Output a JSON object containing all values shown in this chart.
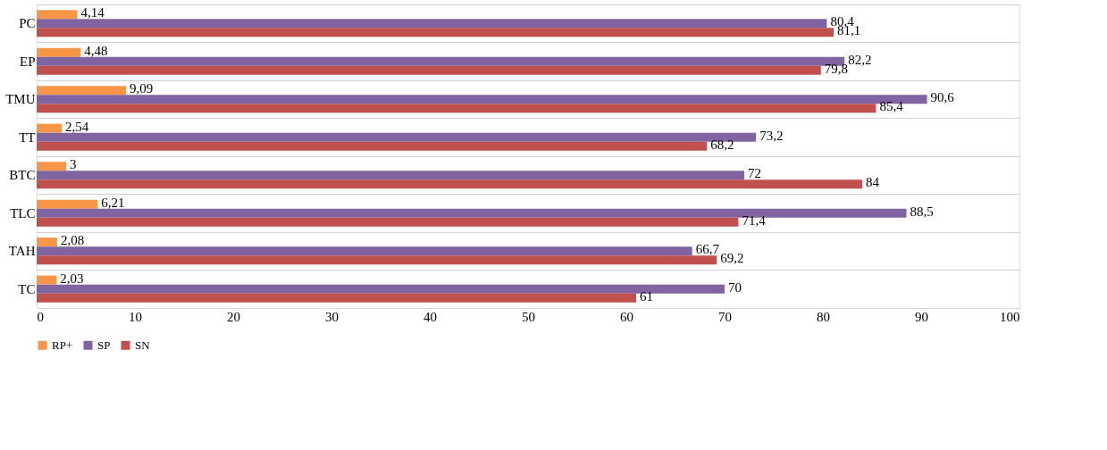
{
  "chart_data": {
    "type": "bar",
    "orientation": "horizontal",
    "categories": [
      "PC",
      "EP",
      "TMU",
      "TT",
      "BTC",
      "TLC",
      "TAH",
      "TC"
    ],
    "series": [
      {
        "name": "RP+",
        "color": "#f79646",
        "values": [
          4.14,
          4.48,
          9.09,
          2.54,
          3,
          6.21,
          2.08,
          2.03
        ],
        "value_labels": [
          "4,14",
          "4,48",
          "9,09",
          "2,54",
          "3",
          "6,21",
          "2,08",
          "2,03"
        ]
      },
      {
        "name": "SP",
        "color": "#8064a2",
        "values": [
          80.4,
          82.2,
          90.6,
          73.2,
          72,
          88.5,
          66.7,
          70
        ],
        "value_labels": [
          "80,4",
          "82,2",
          "90,6",
          "73,2",
          "72",
          "88,5",
          "66,7",
          "70"
        ]
      },
      {
        "name": "SN",
        "color": "#c0504d",
        "values": [
          81.1,
          79.8,
          85.4,
          68.2,
          84,
          71.4,
          69.2,
          61
        ],
        "value_labels": [
          "81,1",
          "79,8",
          "85,4",
          "68,2",
          "84",
          "71,4",
          "69,2",
          "61"
        ]
      }
    ],
    "xlim": [
      0,
      100
    ],
    "xticks": [
      0,
      10,
      20,
      30,
      40,
      50,
      60,
      70,
      80,
      90,
      100
    ],
    "grid": "y",
    "legend": "bottom"
  }
}
